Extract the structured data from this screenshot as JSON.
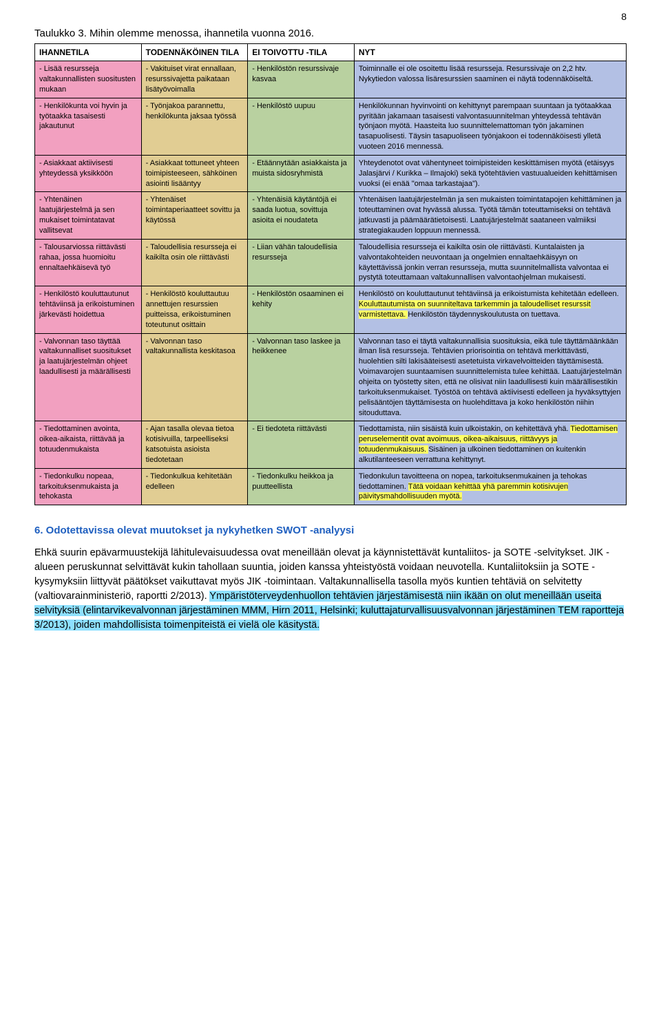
{
  "page_number": "8",
  "table_title": "Taulukko 3. Mihin olemme menossa, ihannetila vuonna 2016.",
  "colors": {
    "col1_bg": "#f2a0c0",
    "col2_bg": "#e1cd93",
    "col3_bg": "#b9d1a0",
    "col4_bg": "#b3c0e4",
    "heading_blue": "#2060c0",
    "highlight_yellow": "#ffff66",
    "highlight_cyan": "#8de0ff"
  },
  "headers": [
    "IHANNETILA",
    "TODENNÄKÖINEN TILA",
    "EI TOIVOTTU -TILA",
    "NYT"
  ],
  "rows": [
    {
      "c1": "- Lisää resursseja valtakunnallisten suositusten mukaan",
      "c2": "- Vakituiset virat ennallaan, resurssivajetta paikataan lisätyövoimalla",
      "c3": "- Henkilöstön resurssivaje kasvaa",
      "c4": "Toiminnalle ei ole osoitettu lisää resursseja. Resurssivaje on 2,2 htv. Nykytiedon valossa lisäresurssien saaminen ei näytä todennäköiseltä."
    },
    {
      "c1": "- Henkilökunta voi hyvin ja työtaakka tasaisesti jakautunut",
      "c2": "- Työnjakoa parannettu, henkilökunta jaksaa työssä",
      "c3": "- Henkilöstö uupuu",
      "c4": "Henkilökunnan hyvinvointi on kehittynyt parempaan suuntaan ja työtaakkaa pyritään jakamaan tasaisesti valvontasuunnitelman yhteydessä tehtävän työnjaon myötä. Haasteita luo suunnittelemattoman työn jakaminen tasapuolisesti. Täysin tasapuoliseen työnjakoon ei todennäköisesti ylletä vuoteen 2016 mennessä."
    },
    {
      "c1": "- Asiakkaat aktiivisesti yhteydessä yksikköön",
      "c2": "- Asiakkaat tottuneet yhteen toimipisteeseen, sähköinen asiointi lisääntyy",
      "c3": "- Etäännytään asiakkaista ja muista sidosryhmistä",
      "c4": "Yhteydenotot ovat vähentyneet toimipisteiden keskittämisen myötä (etäisyys Jalasjärvi / Kurikka – Ilmajoki) sekä työtehtävien vastuualueiden kehittämisen vuoksi (ei enää \"omaa tarkastajaa\")."
    },
    {
      "c1": "- Yhtenäinen laatujärjestelmä ja sen mukaiset toimintatavat vallitsevat",
      "c2": "- Yhtenäiset toimintaperiaatteet sovittu ja käytössä",
      "c3": "- Yhtenäisiä käytäntöjä ei saada luotua, sovittuja asioita ei noudateta",
      "c4": "Yhtenäisen laatujärjestelmän ja sen mukaisten toimintatapojen kehittäminen ja toteuttaminen ovat hyvässä alussa. Työtä tämän toteuttamiseksi on tehtävä jatkuvasti ja päämäärätietoisesti. Laatujärjestelmät saataneen valmiiksi strategiakauden loppuun mennessä."
    },
    {
      "c1": "- Talousarviossa riittävästi rahaa, jossa huomioitu ennaltaehkäisevä työ",
      "c2": "- Taloudellisia resursseja ei kaikilta osin ole riittävästi",
      "c3": "- Liian vähän taloudellisia resursseja",
      "c4": "Taloudellisia resursseja ei kaikilta osin ole riittävästi. Kuntalaisten ja valvontakohteiden neuvontaan ja ongelmien ennaltaehkäisyyn on käytettävissä jonkin verran resursseja, mutta suunnitelmallista valvontaa ei pystytä toteuttamaan valtakunnallisen valvontaohjelman mukaisesti."
    },
    {
      "c1": "- Henkilöstö kouluttautunut tehtäviinsä ja erikoistuminen järkevästi hoidettua",
      "c2": "- Henkilöstö kouluttautuu annettujen resurssien puitteissa, erikoistuminen toteutunut osittain",
      "c3": "- Henkilöstön osaaminen ei kehity",
      "c4_pre": "Henkilöstö on kouluttautunut tehtäviinsä ja erikoistumista kehitetään edelleen. ",
      "c4_hl": "Kouluttautumista on suunniteltava tarkemmin ja taloudelliset resurssit varmistettava. ",
      "c4_post": "Henkilöstön täydennyskoulutusta on tuettava."
    },
    {
      "c1": "- Valvonnan taso täyttää valtakunnalliset suositukset ja laatujärjestelmän ohjeet laadullisesti ja määrällisesti",
      "c2": "- Valvonnan taso valtakunnallista keskitasoa",
      "c3": "- Valvonnan taso laskee ja heikkenee",
      "c4": "Valvonnan taso ei täytä valtakunnallisia suosituksia, eikä tule täyttämäänkään ilman lisä resursseja. Tehtävien priorisointia on tehtävä merkittävästi, huolehtien silti lakisääteisesti asetetuista virkavelvoitteiden täyttämisestä. Voimavarojen suuntaamisen suunnittelemista tulee kehittää. Laatujärjestelmän ohjeita on työstetty siten, että ne olisivat niin laadullisesti kuin määrällisestikin tarkoituksenmukaiset. Työstöä on tehtävä aktiivisesti edelleen ja hyväksyttyjen pelisääntöjen täyttämisesta on huolehdittava ja koko henkilöstön niihin sitouduttava."
    },
    {
      "c1": "- Tiedottaminen avointa, oikea-aikaista, riittävää ja totuudenmukaista",
      "c2": "- Ajan tasalla olevaa tietoa kotisivuilla, tarpeelliseksi katsotuista asioista tiedotetaan",
      "c3": "- Ei tiedoteta riittävästi",
      "c4_pre": "Tiedottamista, niin sisäistä kuin ulkoistakin, on kehitettävä yhä. ",
      "c4_hl": "Tiedottamisen peruselementit ovat avoimuus, oikea-aikaisuus, riittävyys ja totuudenmukaisuus.  ",
      "c4_post": "Sisäinen ja ulkoinen tiedottaminen on kuitenkin alkutilanteeseen verrattuna kehittynyt."
    },
    {
      "c1": "- Tiedonkulku nopeaa, tarkoituksenmukaista ja tehokasta",
      "c2": "- Tiedonkulkua kehitetään edelleen",
      "c3": "- Tiedonkulku heikkoa ja puutteellista",
      "c4_pre": "Tiedonkulun tavoitteena on nopea, tarkoituksenmukainen ja tehokas tiedottaminen. ",
      "c4_hl": "Tätä voidaan kehittää yhä paremmin kotisivujen päivitysmahdollisuuden myötä.",
      "c4_post": ""
    }
  ],
  "section_heading": "6. Odotettavissa olevat muutokset ja nykyhetken SWOT -analyysi",
  "body": {
    "p1": "Ehkä suurin epävarmuustekijä lähitulevaisuudessa ovat meneillään olevat ja käynnistettävät kuntaliitos- ja SOTE -selvitykset. JIK -alueen peruskunnat selvittävät kukin tahollaan suuntia, joiden kanssa yhteistyöstä voidaan neuvotella. Kuntaliitoksiin ja SOTE -kysymyksiin liittyvät päätökset vaikuttavat myös JIK -toimintaan. Valtakunnallisella tasolla myös kuntien tehtäviä on selvitetty (valtiovarainministeriö, raportti 2/2013). ",
    "p1_hl": "Ympäristöterveydenhuollon tehtävien järjestämisestä niin ikään on olut meneillään useita selvityksiä (elintarvikevalvonnan järjestäminen MMM, Hirn 2011, Helsinki; kuluttajaturvallisuusvalvonnan järjestäminen TEM raportteja 3/2013), joiden mahdollisista toimenpiteistä ei vielä ole käsitystä."
  }
}
